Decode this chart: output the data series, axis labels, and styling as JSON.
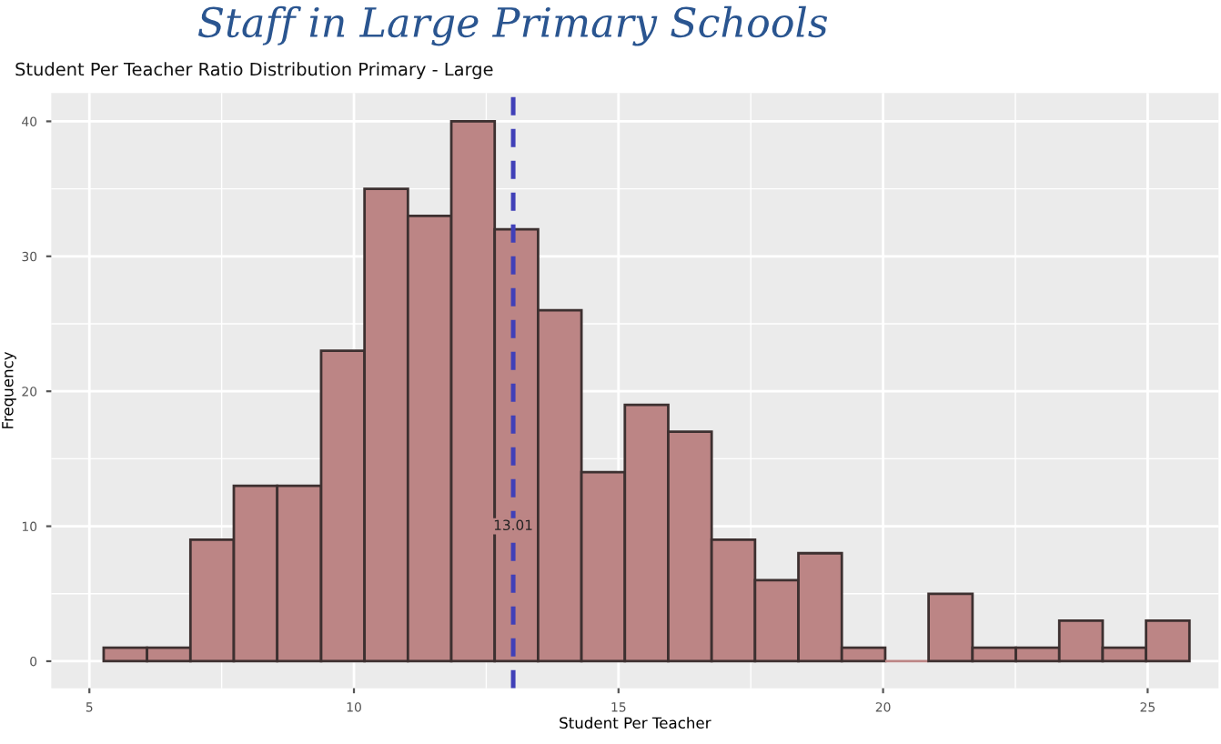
{
  "chart_data": {
    "type": "histogram",
    "title": "Staff in Large Primary Schools",
    "subtitle": "Student Per Teacher Ratio Distribution Primary - Large",
    "xlabel": "Student Per Teacher",
    "ylabel": "Frequency",
    "bins": [
      5.27,
      6.09,
      6.91,
      7.73,
      8.55,
      9.38,
      10.2,
      11.02,
      11.84,
      12.66,
      13.48,
      14.3,
      15.12,
      15.94,
      16.76,
      17.58,
      18.4,
      19.22,
      20.04,
      20.86,
      21.69,
      22.51,
      23.33,
      24.15,
      24.97,
      25.79
    ],
    "values": [
      1,
      1,
      9,
      13,
      13,
      23,
      35,
      33,
      40,
      32,
      26,
      14,
      19,
      17,
      9,
      6,
      8,
      1,
      0,
      5,
      1,
      1,
      3,
      1,
      3
    ],
    "color": "#bc8585",
    "xlim": [
      4.28,
      26.34
    ],
    "ylim": [
      -2,
      42.1
    ],
    "xticks": [
      5,
      10,
      15,
      20,
      25
    ],
    "yticks": [
      0,
      10,
      20,
      30,
      40
    ],
    "grid": true,
    "ref_lines": [
      {
        "axis": "x",
        "value": 13.01,
        "label": "13.01",
        "color": "#4040b8",
        "line_style": "dashed"
      }
    ]
  }
}
